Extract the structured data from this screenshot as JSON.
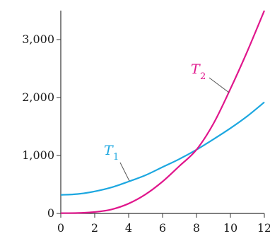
{
  "chart_data": {
    "type": "line",
    "xlim": [
      0,
      12
    ],
    "ylim": [
      0,
      3500
    ],
    "x_ticks": [
      0,
      2,
      4,
      6,
      8,
      10,
      12
    ],
    "x_tick_labels": [
      "0",
      "2",
      "4",
      "6",
      "8",
      "10",
      "12"
    ],
    "y_ticks": [
      0,
      1000,
      2000,
      3000
    ],
    "y_tick_labels": [
      "0",
      "1,000",
      "2,000",
      "3,000"
    ],
    "grid": false,
    "series": [
      {
        "name": "T1",
        "label_main": "T",
        "label_sub": "1",
        "color": "#1ca7e0",
        "x": [
          0,
          1,
          2,
          3,
          4,
          5,
          6,
          7,
          8,
          9,
          10,
          11,
          12
        ],
        "y": [
          320,
          335,
          380,
          450,
          550,
          660,
          800,
          940,
          1100,
          1280,
          1470,
          1680,
          1920
        ]
      },
      {
        "name": "T2",
        "label_main": "T",
        "label_sub": "2",
        "color": "#e0168c",
        "x": [
          0,
          1,
          2,
          3,
          4,
          5,
          6,
          7,
          8,
          9,
          10,
          11,
          12
        ],
        "y": [
          5,
          8,
          25,
          70,
          170,
          330,
          550,
          820,
          1100,
          1550,
          2150,
          2800,
          3500
        ]
      }
    ]
  }
}
